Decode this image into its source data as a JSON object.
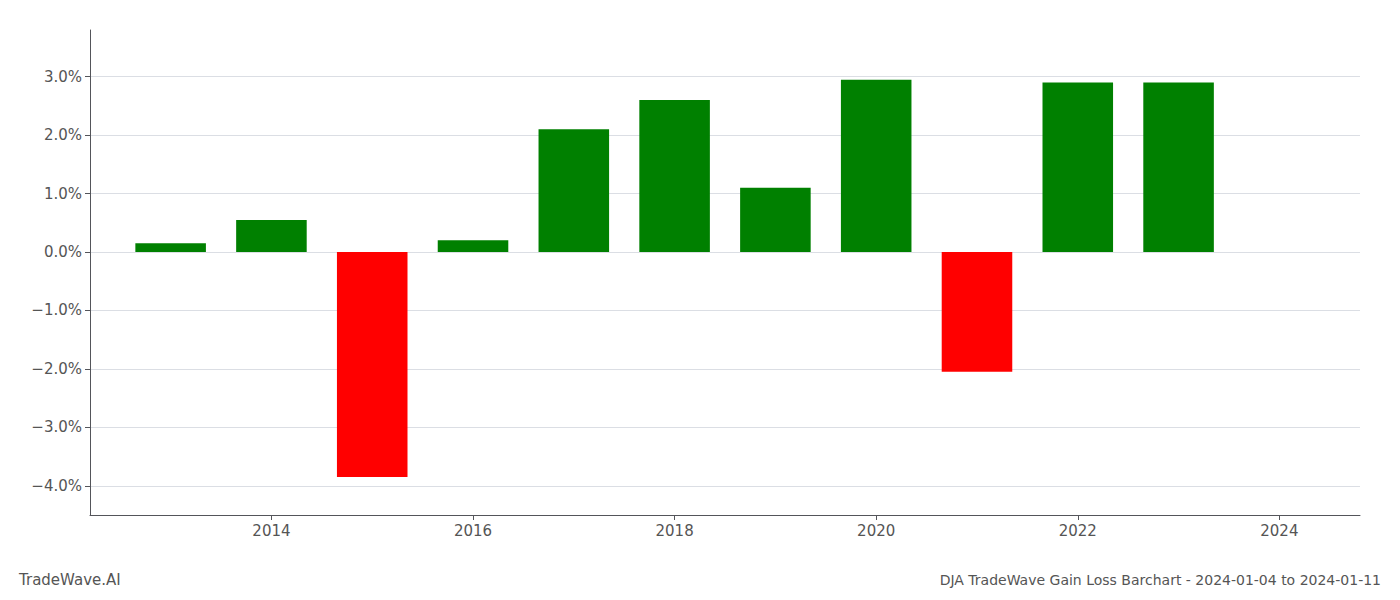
{
  "chart_data": {
    "type": "bar",
    "title": "DJA TradeWave Gain Loss Barchart - 2024-01-04 to 2024-01-11",
    "annotations": [
      "TradeWave.AI"
    ],
    "x": [
      2013,
      2014,
      2015,
      2016,
      2017,
      2018,
      2019,
      2020,
      2021,
      2022,
      2023
    ],
    "values": [
      0.0015,
      0.0055,
      -0.0385,
      0.002,
      0.021,
      0.026,
      0.011,
      0.0295,
      -0.0205,
      0.029,
      0.029
    ],
    "colors": [
      "#008000",
      "#008000",
      "#ff0000",
      "#008000",
      "#008000",
      "#008000",
      "#008000",
      "#008000",
      "#ff0000",
      "#008000",
      "#008000"
    ],
    "xlim": [
      2012.2,
      2024.8
    ],
    "xticks": [
      2014,
      2016,
      2018,
      2020,
      2022,
      2024
    ],
    "ylim": [
      -0.045,
      0.038
    ],
    "yticks": [
      {
        "value": -0.04,
        "label": "−4.0%"
      },
      {
        "value": -0.03,
        "label": "−3.0%"
      },
      {
        "value": -0.02,
        "label": "−2.0%"
      },
      {
        "value": -0.01,
        "label": "−1.0%"
      },
      {
        "value": 0,
        "label": "0.0%"
      },
      {
        "value": 0.01,
        "label": "1.0%"
      },
      {
        "value": 0.02,
        "label": "2.0%"
      },
      {
        "value": 0.03,
        "label": "3.0%"
      }
    ],
    "grid": true
  }
}
